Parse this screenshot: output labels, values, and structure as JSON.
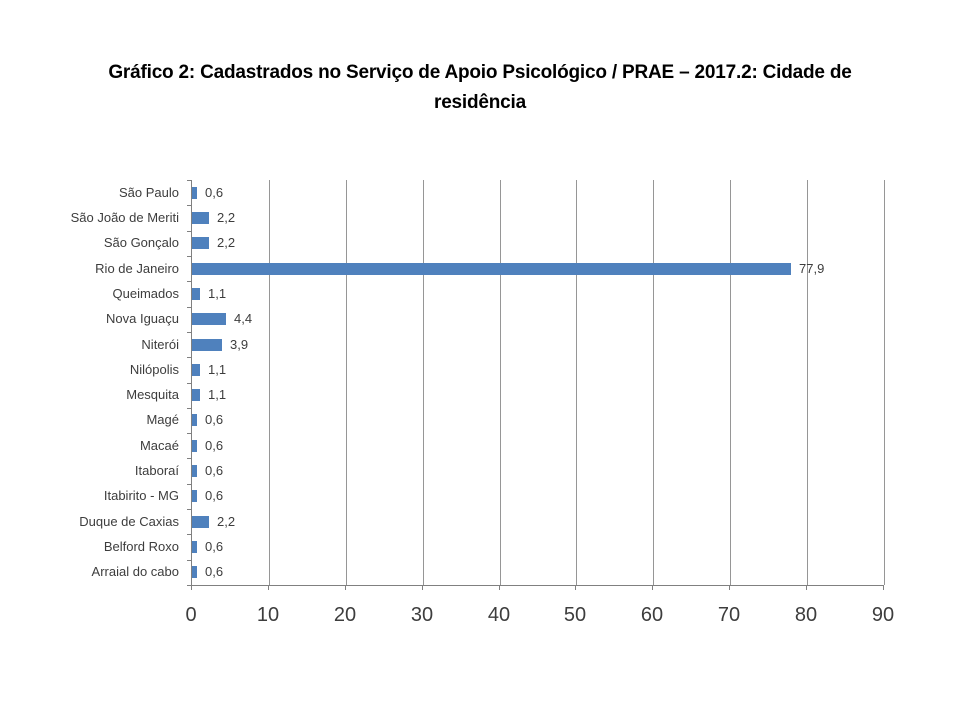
{
  "page": {
    "background": "#ffffff"
  },
  "title_lines": [
    "Gráfico 2: Cadastrados no Serviço de Apoio Psicológico / PRAE – 2017.2: Cidade de",
    "residência"
  ],
  "chart_data": {
    "type": "bar",
    "orientation": "horizontal",
    "title": "Gráfico 2: Cadastrados no Serviço de Apoio Psicológico / PRAE – 2017.2: Cidade de residência",
    "categories": [
      "São Paulo",
      "São João de Meriti",
      "São Gonçalo",
      "Rio de Janeiro",
      "Queimados",
      "Nova Iguaçu",
      "Niterói",
      "Nilópolis",
      "Mesquita",
      "Magé",
      "Macaé",
      "Itaboraí",
      "Itabirito - MG",
      "Duque de Caxias",
      "Belford Roxo",
      "Arraial do cabo"
    ],
    "values": [
      0.6,
      2.2,
      2.2,
      77.9,
      1.1,
      4.4,
      3.9,
      1.1,
      1.1,
      0.6,
      0.6,
      0.6,
      0.6,
      2.2,
      0.6,
      0.6
    ],
    "value_labels": [
      "0,6",
      "2,2",
      "2,2",
      "77,9",
      "1,1",
      "4,4",
      "3,9",
      "1,1",
      "1,1",
      "0,6",
      "0,6",
      "0,6",
      "0,6",
      "2,2",
      "0,6",
      "0,6"
    ],
    "x_ticks": [
      0,
      10,
      20,
      30,
      40,
      50,
      60,
      70,
      80,
      90
    ],
    "xlim": [
      0,
      90
    ],
    "grid": "vertical-only",
    "legend": "none",
    "xlabel": "",
    "ylabel": "",
    "bar_color": "#4f81bd",
    "gridline_color": "#969696",
    "axis_color": "#808080",
    "text_color": "#3d3d3d"
  }
}
